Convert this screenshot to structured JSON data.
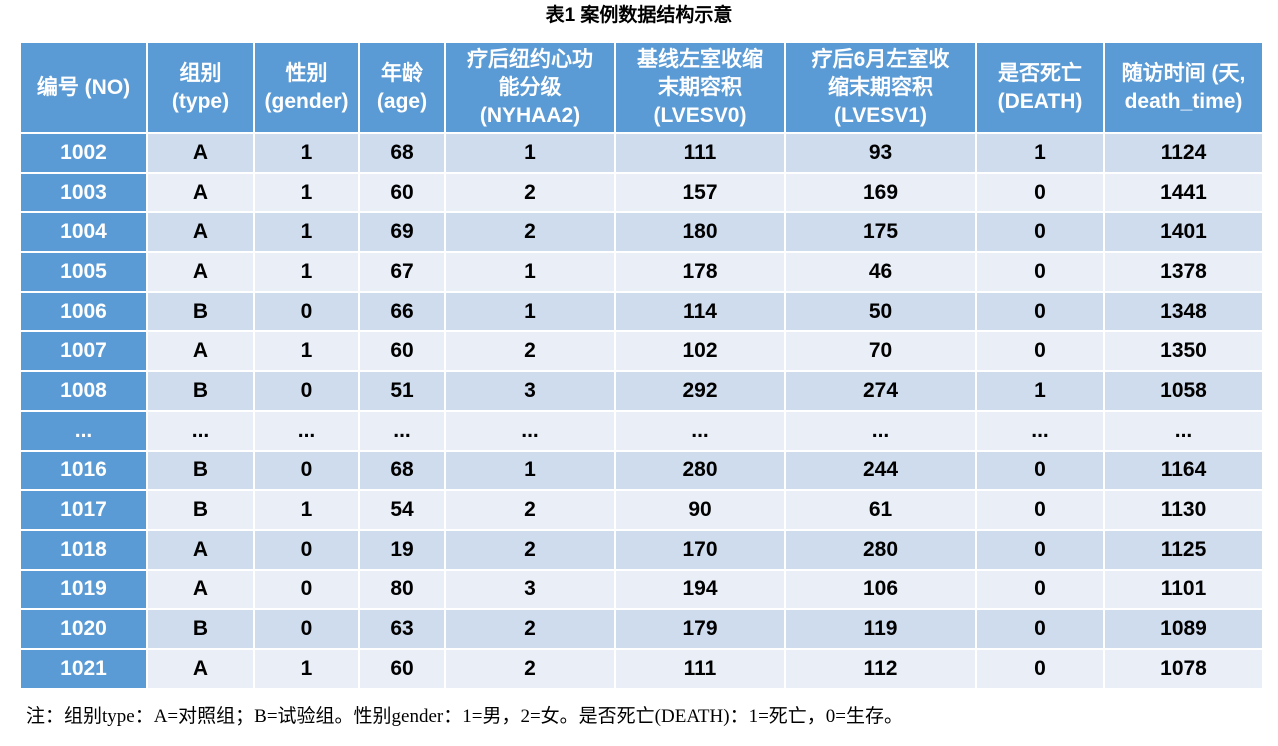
{
  "title": "表1  案例数据结构示意",
  "headers": [
    [
      "编号 (NO)"
    ],
    [
      "组别",
      "(type)"
    ],
    [
      "性别",
      "(gender)"
    ],
    [
      "年龄",
      "(age)"
    ],
    [
      "疗后纽约心功",
      "能分级",
      "(NYHAA2)"
    ],
    [
      "基线左室收缩",
      "末期容积",
      "(LVESV0)"
    ],
    [
      "疗后6月左室收",
      "缩末期容积",
      "(LVESV1)"
    ],
    [
      "是否死亡",
      "(DEATH)"
    ],
    [
      "随访时间 (天,",
      "death_time)"
    ]
  ],
  "rows": [
    [
      "1002",
      "A",
      "1",
      "68",
      "1",
      "111",
      "93",
      "1",
      "1124"
    ],
    [
      "1003",
      "A",
      "1",
      "60",
      "2",
      "157",
      "169",
      "0",
      "1441"
    ],
    [
      "1004",
      "A",
      "1",
      "69",
      "2",
      "180",
      "175",
      "0",
      "1401"
    ],
    [
      "1005",
      "A",
      "1",
      "67",
      "1",
      "178",
      "46",
      "0",
      "1378"
    ],
    [
      "1006",
      "B",
      "0",
      "66",
      "1",
      "114",
      "50",
      "0",
      "1348"
    ],
    [
      "1007",
      "A",
      "1",
      "60",
      "2",
      "102",
      "70",
      "0",
      "1350"
    ],
    [
      "1008",
      "B",
      "0",
      "51",
      "3",
      "292",
      "274",
      "1",
      "1058"
    ],
    [
      "...",
      "...",
      "...",
      "...",
      "...",
      "...",
      "...",
      "...",
      "..."
    ],
    [
      "1016",
      "B",
      "0",
      "68",
      "1",
      "280",
      "244",
      "0",
      "1164"
    ],
    [
      "1017",
      "B",
      "1",
      "54",
      "2",
      "90",
      "61",
      "0",
      "1130"
    ],
    [
      "1018",
      "A",
      "0",
      "19",
      "2",
      "170",
      "280",
      "0",
      "1125"
    ],
    [
      "1019",
      "A",
      "0",
      "80",
      "3",
      "194",
      "106",
      "0",
      "1101"
    ],
    [
      "1020",
      "B",
      "0",
      "63",
      "2",
      "179",
      "119",
      "0",
      "1089"
    ],
    [
      "1021",
      "A",
      "1",
      "60",
      "2",
      "111",
      "112",
      "0",
      "1078"
    ]
  ],
  "note": "注：组别type：A=对照组；B=试验组。性别gender：1=男，2=女。是否死亡(DEATH)：1=死亡，0=生存。",
  "colors": {
    "header_bg": "#5b9bd5",
    "row_odd_bg": "#cfdcee",
    "row_even_bg": "#e9eef7"
  }
}
